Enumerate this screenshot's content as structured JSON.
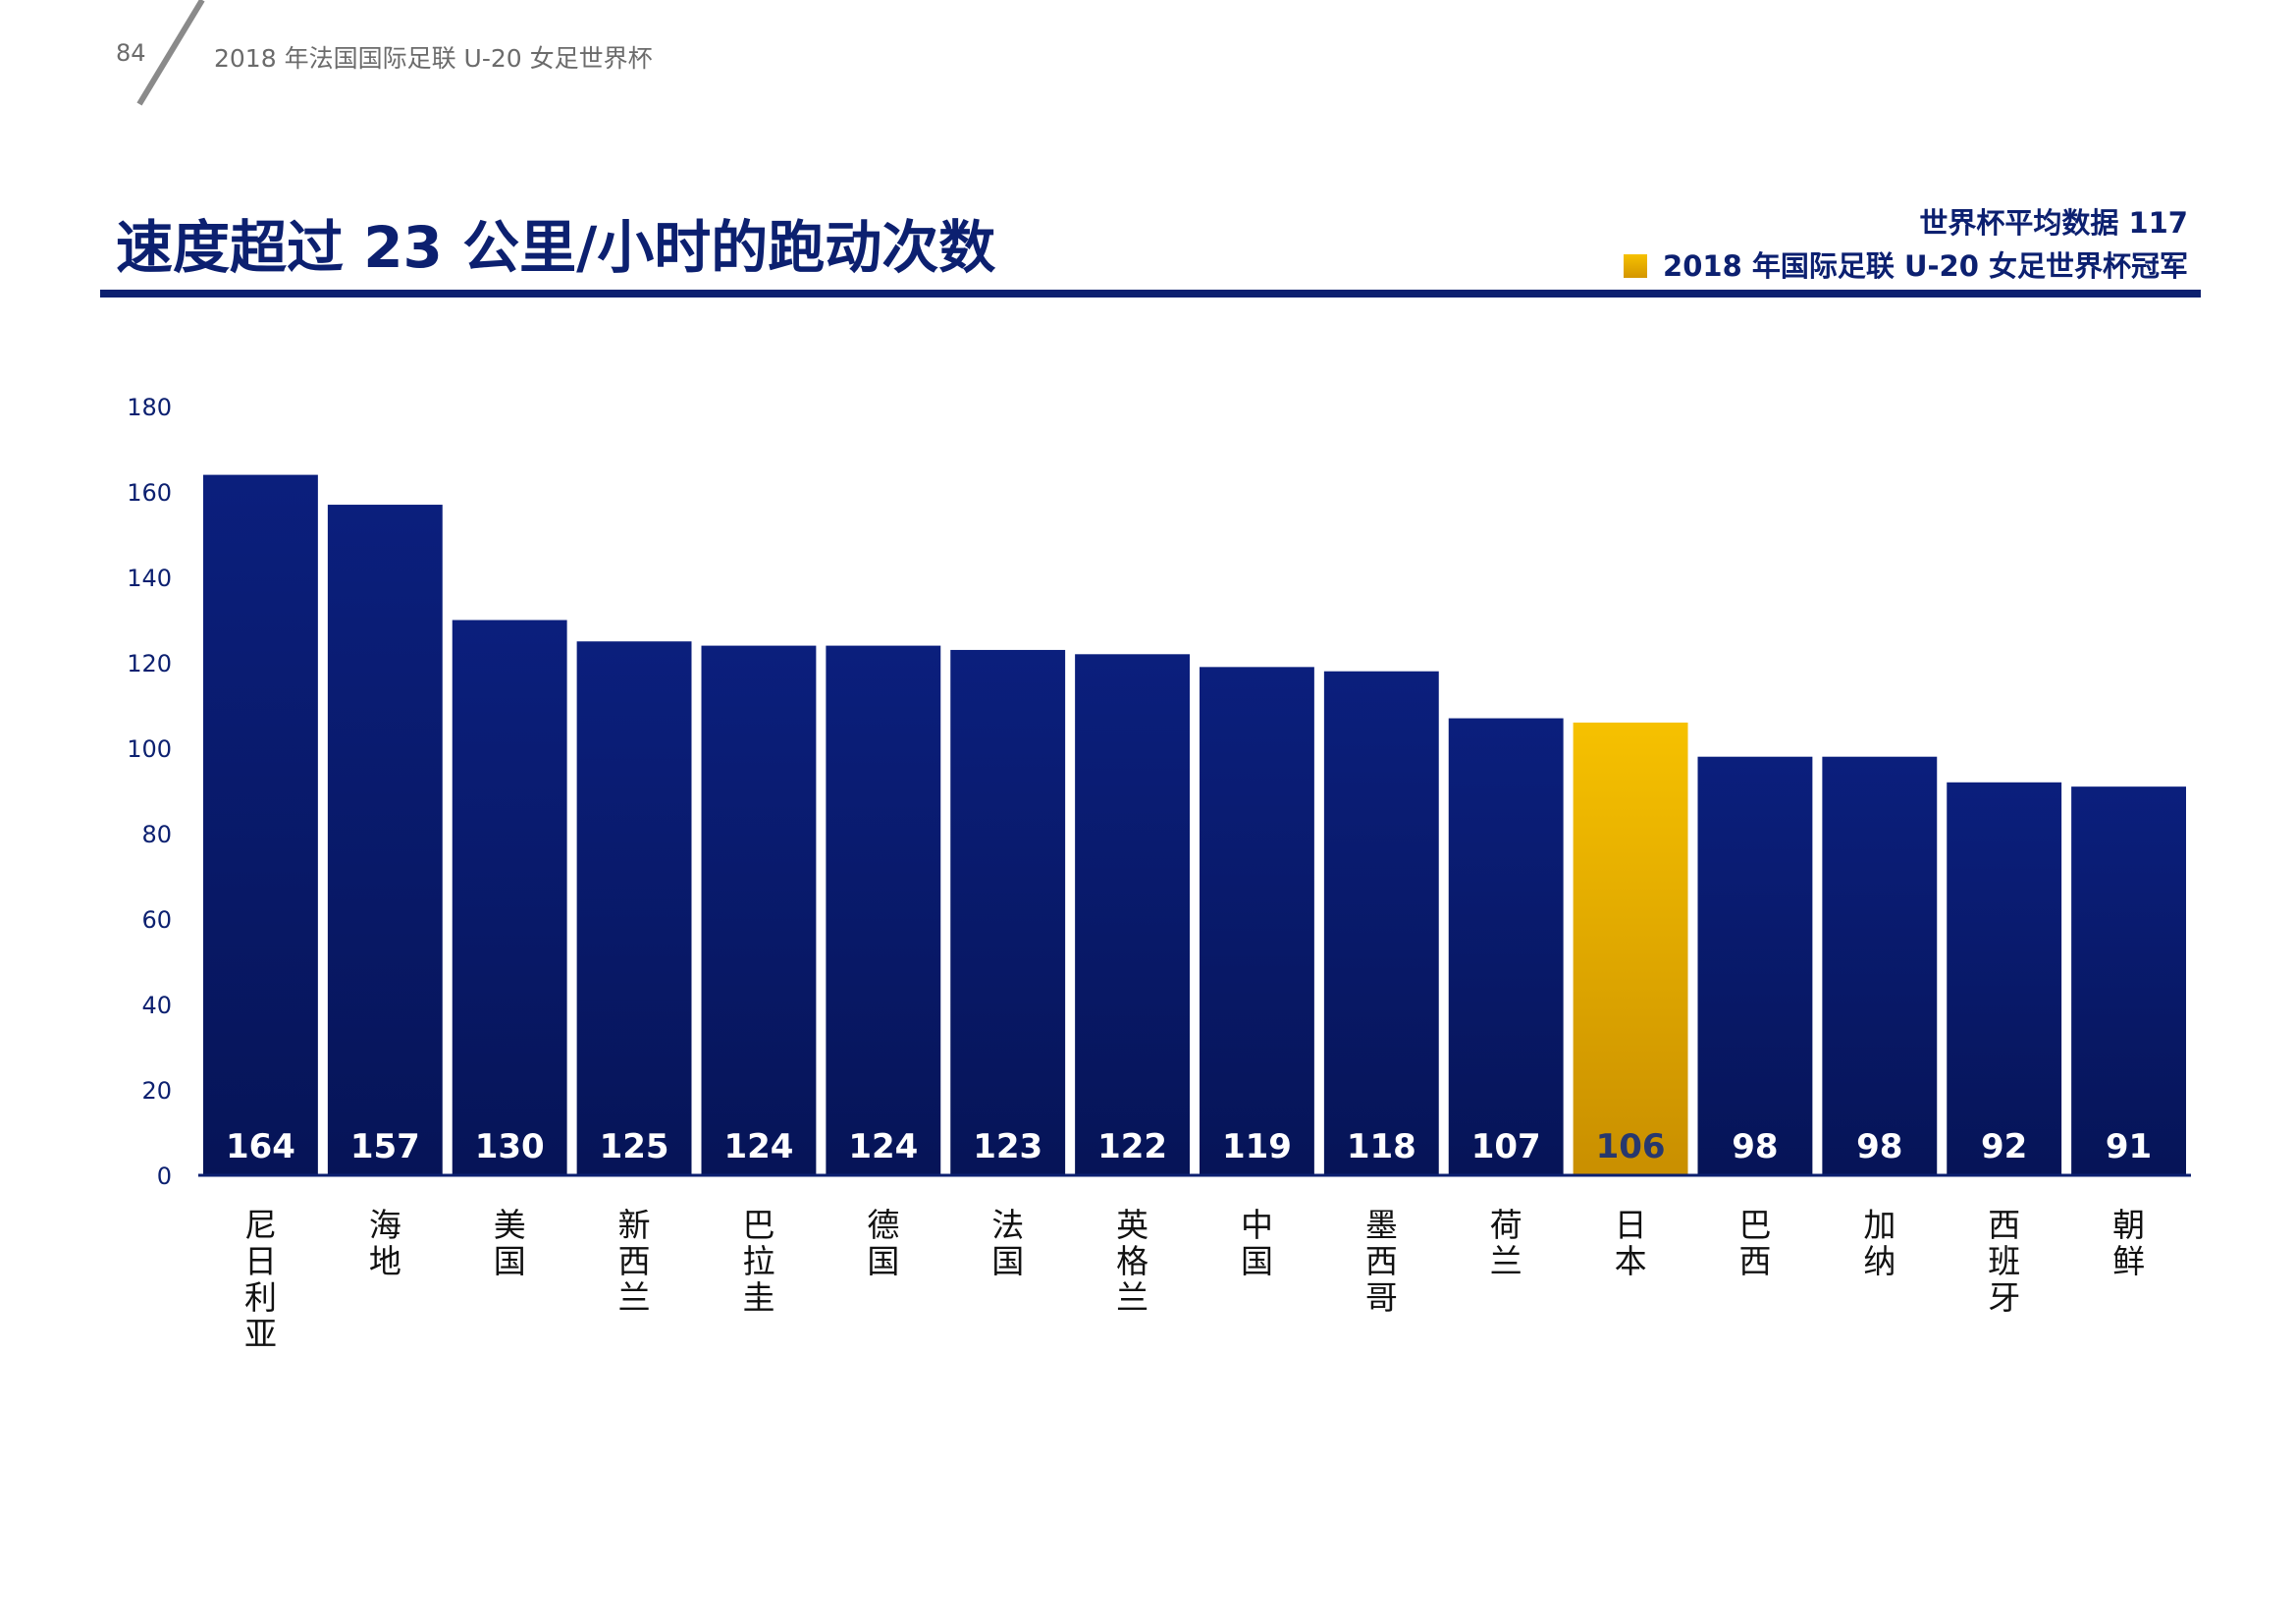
{
  "header": {
    "page_number": "84",
    "doc_title": "2018 年法国国际足联 U-20 女足世界杯"
  },
  "title": "速度超过 23 公里/小时的跑动次数",
  "legend": {
    "average_text": "世界杯平均数据 117",
    "champion_text": "2018 年国际足联 U-20 女足世界杯冠军"
  },
  "colors": {
    "bar": "#0b1f7d",
    "bar_dark": "#061457",
    "champion": "#f6c100",
    "champion_dark": "#c98f00",
    "title": "#0c2070"
  },
  "chart_data": {
    "type": "bar",
    "categories": [
      "尼日利亚",
      "海地",
      "美国",
      "新西兰",
      "巴拉圭",
      "德国",
      "法国",
      "英格兰",
      "中国",
      "墨西哥",
      "荷兰",
      "日本",
      "巴西",
      "加纳",
      "西班牙",
      "朝鲜"
    ],
    "values": [
      164,
      157,
      130,
      125,
      124,
      124,
      123,
      122,
      119,
      118,
      107,
      106,
      98,
      98,
      92,
      91
    ],
    "highlight": "日本",
    "ylim": [
      0,
      180
    ],
    "yticks": [
      0,
      20,
      40,
      60,
      80,
      100,
      120,
      140,
      160,
      180
    ],
    "grid": false,
    "legend_position": "top-right"
  }
}
